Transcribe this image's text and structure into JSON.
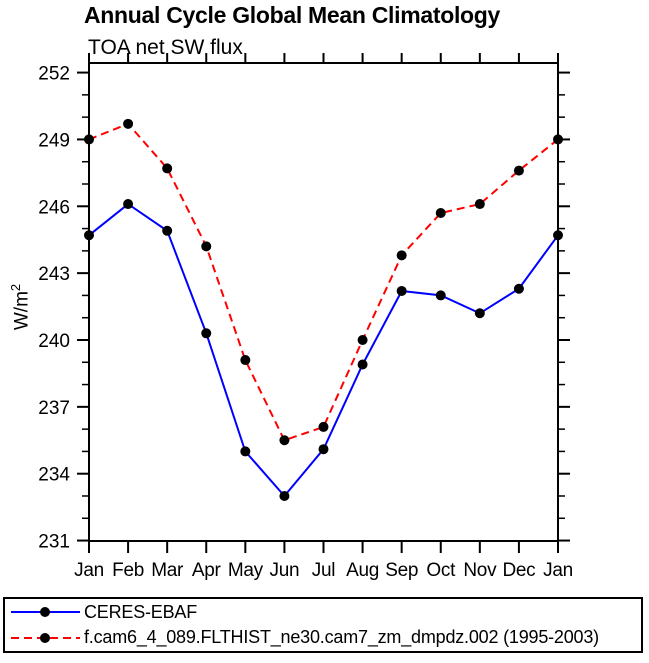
{
  "chart_data": {
    "type": "line",
    "title": "Annual Cycle Global Mean Climatology",
    "subtitle": "TOA net SW flux",
    "ylabel": {
      "base": "W/m",
      "sup": "2"
    },
    "xlabel": "",
    "categories": [
      "Jan",
      "Feb",
      "Mar",
      "Apr",
      "May",
      "Jun",
      "Jul",
      "Aug",
      "Sep",
      "Oct",
      "Nov",
      "Dec",
      "Jan"
    ],
    "series": [
      {
        "name": "CERES-EBAF",
        "color": "#0000ff",
        "line_style": "solid",
        "marker_color": "#000000",
        "values": [
          244.7,
          246.1,
          244.9,
          240.3,
          235.0,
          233.0,
          235.1,
          238.9,
          242.2,
          242.0,
          241.2,
          242.3,
          244.7
        ]
      },
      {
        "name": "f.cam6_4_089.FLTHIST_ne30.cam7_zm_dmpdz.002 (1995-2003)",
        "color": "#ff0000",
        "line_style": "dashed",
        "marker_color": "#000000",
        "values": [
          249.0,
          249.7,
          247.7,
          244.2,
          239.1,
          235.5,
          236.1,
          240.0,
          243.8,
          245.7,
          246.1,
          247.6,
          249.0
        ]
      }
    ],
    "ylim": [
      230.98,
      252.43
    ],
    "yticks_major": [
      231,
      234,
      237,
      240,
      243,
      246,
      249,
      252
    ],
    "ytick_minor_step": 1,
    "grid": false,
    "legend_position": "bottom",
    "axis_color": "#000000"
  }
}
